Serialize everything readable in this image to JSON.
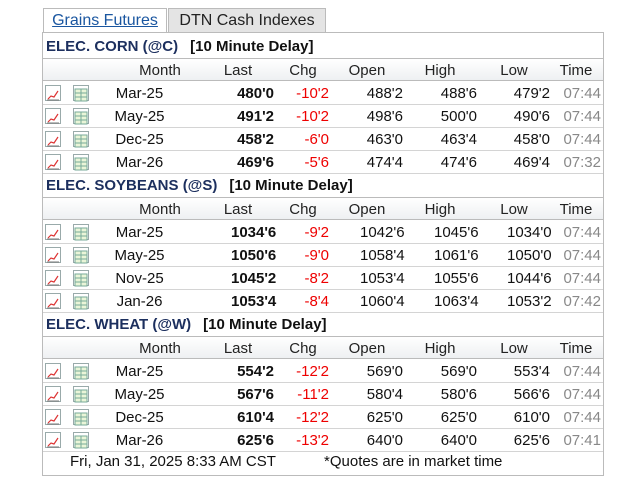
{
  "tabs": [
    "Grains Futures",
    "DTN Cash Indexes"
  ],
  "sections": [
    {
      "title": "ELEC. CORN (@C)",
      "delay": "[10 Minute Delay]",
      "columns": [
        "Month",
        "Last",
        "Chg",
        "Open",
        "High",
        "Low",
        "Time"
      ],
      "rows": [
        [
          "Mar-25",
          "480'0",
          "-10'2",
          "488'2",
          "488'6",
          "479'2",
          "07:44"
        ],
        [
          "May-25",
          "491'2",
          "-10'2",
          "498'6",
          "500'0",
          "490'6",
          "07:44"
        ],
        [
          "Dec-25",
          "458'2",
          "-6'0",
          "463'0",
          "463'4",
          "458'0",
          "07:44"
        ],
        [
          "Mar-26",
          "469'6",
          "-5'6",
          "474'4",
          "474'6",
          "469'4",
          "07:32"
        ]
      ]
    },
    {
      "title": "ELEC. SOYBEANS (@S)",
      "delay": "[10 Minute Delay]",
      "columns": [
        "Month",
        "Last",
        "Chg",
        "Open",
        "High",
        "Low",
        "Time"
      ],
      "rows": [
        [
          "Mar-25",
          "1034'6",
          "-9'2",
          "1042'6",
          "1045'6",
          "1034'0",
          "07:44"
        ],
        [
          "May-25",
          "1050'6",
          "-9'0",
          "1058'4",
          "1061'6",
          "1050'0",
          "07:44"
        ],
        [
          "Nov-25",
          "1045'2",
          "-8'2",
          "1053'4",
          "1055'6",
          "1044'6",
          "07:44"
        ],
        [
          "Jan-26",
          "1053'4",
          "-8'4",
          "1060'4",
          "1063'4",
          "1053'2",
          "07:42"
        ]
      ]
    },
    {
      "title": "ELEC. WHEAT (@W)",
      "delay": "[10 Minute Delay]",
      "columns": [
        "Month",
        "Last",
        "Chg",
        "Open",
        "High",
        "Low",
        "Time"
      ],
      "rows": [
        [
          "Mar-25",
          "554'2",
          "-12'2",
          "569'0",
          "569'0",
          "553'4",
          "07:44"
        ],
        [
          "May-25",
          "567'6",
          "-11'2",
          "580'4",
          "580'6",
          "566'6",
          "07:44"
        ],
        [
          "Dec-25",
          "610'4",
          "-12'2",
          "625'0",
          "625'0",
          "610'0",
          "07:44"
        ],
        [
          "Mar-26",
          "625'6",
          "-13'2",
          "640'0",
          "640'0",
          "625'6",
          "07:41"
        ]
      ]
    }
  ],
  "footer": {
    "timestamp": "Fri, Jan 31, 2025 8:33 AM CST",
    "note": "*Quotes are in market time"
  }
}
